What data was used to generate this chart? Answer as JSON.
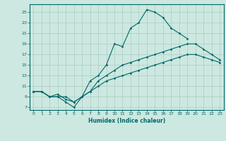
{
  "xlabel": "Humidex (Indice chaleur)",
  "bg_color": "#cce8e0",
  "line_color": "#006868",
  "grid_color": "#aaccc8",
  "xlim": [
    -0.5,
    23.5
  ],
  "ylim": [
    6.5,
    26.5
  ],
  "xticks": [
    0,
    1,
    2,
    3,
    4,
    5,
    6,
    7,
    8,
    9,
    10,
    11,
    12,
    13,
    14,
    15,
    16,
    17,
    18,
    19,
    20,
    21,
    22,
    23
  ],
  "yticks": [
    7,
    9,
    11,
    13,
    15,
    17,
    19,
    21,
    23,
    25
  ],
  "line1_x": [
    0,
    1,
    2,
    3,
    4,
    5,
    6,
    7,
    8,
    9,
    10,
    11,
    12,
    13,
    14,
    15,
    16,
    17,
    18,
    19
  ],
  "line1_y": [
    10,
    10,
    9,
    9,
    8,
    7,
    9,
    12,
    13,
    15,
    19,
    18.5,
    22,
    23,
    25.5,
    25,
    24,
    22,
    21,
    20
  ],
  "line2_x": [
    0,
    1,
    2,
    3,
    4,
    5,
    6,
    7,
    8,
    9,
    10,
    11,
    12,
    13,
    14,
    15,
    16,
    17,
    18,
    19,
    20,
    21,
    22,
    23
  ],
  "line2_y": [
    10,
    10,
    9,
    9.5,
    8.5,
    8,
    9,
    10,
    12,
    13,
    14,
    15,
    15.5,
    16,
    16.5,
    17,
    17.5,
    18,
    18.5,
    19,
    19,
    18,
    17,
    16
  ],
  "line3_x": [
    0,
    1,
    2,
    3,
    4,
    5,
    6,
    7,
    8,
    9,
    10,
    11,
    12,
    13,
    14,
    15,
    16,
    17,
    18,
    19,
    20,
    21,
    22,
    23
  ],
  "line3_y": [
    10,
    10,
    9,
    9,
    9,
    8,
    9,
    10,
    11,
    12,
    12.5,
    13,
    13.5,
    14,
    14.5,
    15,
    15.5,
    16,
    16.5,
    17,
    17,
    16.5,
    16,
    15.5
  ]
}
